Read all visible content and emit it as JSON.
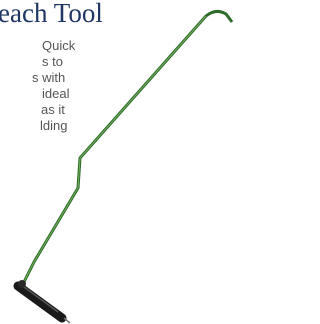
{
  "header": {
    "title": "each Tool"
  },
  "body": {
    "lines": [
      "Quick",
      "s to",
      "s with",
      "ideal",
      "as it",
      "lding"
    ]
  }
}
